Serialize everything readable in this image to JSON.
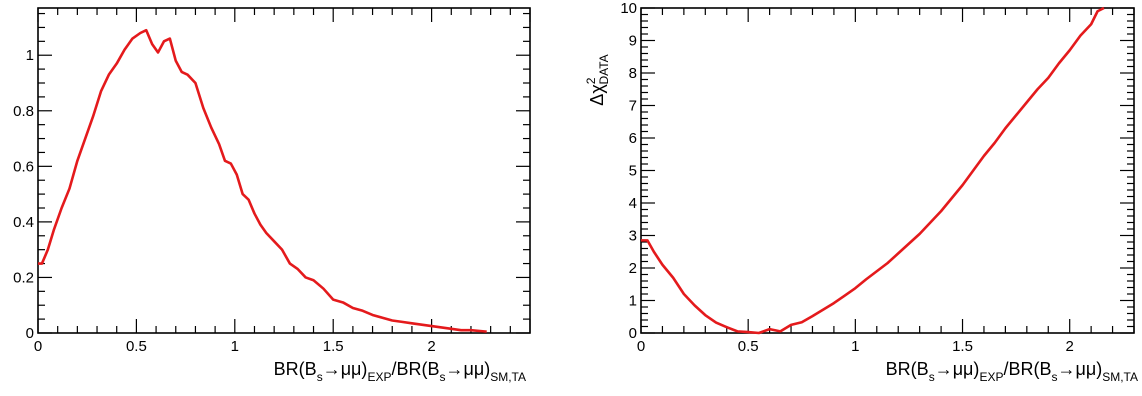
{
  "chart_data": [
    {
      "type": "line",
      "title": "",
      "xlabel": "BR(B_s→μμ)_EXP/BR(B_s→μμ)_SM,TA",
      "xlabel_parts": {
        "a": "BR(B",
        "b": "s",
        "c": "→μμ)",
        "d": "EXP",
        "e": "/BR(B",
        "f": "s",
        "g": "→μμ)",
        "h": "SM,TA"
      },
      "ylabel": "",
      "xlim": [
        0,
        2.5
      ],
      "ylim": [
        0,
        1.17
      ],
      "x_ticks": [
        0,
        0.5,
        1,
        1.5,
        2
      ],
      "x_tick_labels": [
        "0",
        "0.5",
        "1",
        "1.5",
        "2"
      ],
      "y_ticks": [
        0,
        0.2,
        0.4,
        0.6,
        0.8,
        1
      ],
      "y_tick_labels": [
        "0",
        "0.2",
        "0.4",
        "0.6",
        "0.8",
        "1"
      ],
      "grid": false,
      "color": "#e41a1c",
      "series": [
        {
          "x": [
            0,
            0.02,
            0.05,
            0.08,
            0.12,
            0.16,
            0.2,
            0.24,
            0.28,
            0.32,
            0.36,
            0.4,
            0.44,
            0.48,
            0.52,
            0.55,
            0.58,
            0.61,
            0.64,
            0.67,
            0.7,
            0.73,
            0.76,
            0.8,
            0.84,
            0.88,
            0.92,
            0.95,
            0.98,
            1.01,
            1.04,
            1.07,
            1.1,
            1.13,
            1.16,
            1.2,
            1.24,
            1.28,
            1.32,
            1.36,
            1.4,
            1.45,
            1.5,
            1.55,
            1.6,
            1.65,
            1.7,
            1.75,
            1.8,
            1.85,
            1.9,
            1.95,
            2.0,
            2.05,
            2.1,
            2.15,
            2.2,
            2.28
          ],
          "y": [
            0.25,
            0.25,
            0.3,
            0.37,
            0.45,
            0.52,
            0.62,
            0.7,
            0.78,
            0.87,
            0.93,
            0.97,
            1.02,
            1.06,
            1.08,
            1.09,
            1.04,
            1.01,
            1.05,
            1.06,
            0.98,
            0.94,
            0.93,
            0.9,
            0.81,
            0.74,
            0.68,
            0.62,
            0.61,
            0.57,
            0.5,
            0.48,
            0.43,
            0.39,
            0.36,
            0.33,
            0.3,
            0.25,
            0.23,
            0.2,
            0.19,
            0.16,
            0.12,
            0.11,
            0.09,
            0.08,
            0.065,
            0.055,
            0.045,
            0.04,
            0.035,
            0.03,
            0.025,
            0.02,
            0.015,
            0.01,
            0.01,
            0.005
          ]
        }
      ]
    },
    {
      "type": "line",
      "title": "",
      "xlabel": "BR(B_s→μμ)_EXP/BR(B_s→μμ)_SM,TA",
      "xlabel_parts": {
        "a": "BR(B",
        "b": "s",
        "c": "→μμ)",
        "d": "EXP",
        "e": "/BR(B",
        "f": "s",
        "g": "→μμ)",
        "h": "SM,TA"
      },
      "ylabel": "Δχ²_DATA",
      "ylabel_parts": {
        "a": "Δχ",
        "b": "2",
        "c": "DATA"
      },
      "xlim": [
        0,
        2.3
      ],
      "ylim": [
        0,
        10
      ],
      "x_ticks": [
        0,
        0.5,
        1,
        1.5,
        2
      ],
      "x_tick_labels": [
        "0",
        "0.5",
        "1",
        "1.5",
        "2"
      ],
      "y_ticks": [
        0,
        1,
        2,
        3,
        4,
        5,
        6,
        7,
        8,
        9,
        10
      ],
      "y_tick_labels": [
        "0",
        "1",
        "2",
        "3",
        "4",
        "5",
        "6",
        "7",
        "8",
        "9",
        "10"
      ],
      "grid": false,
      "color": "#e41a1c",
      "series": [
        {
          "x": [
            0,
            0.03,
            0.06,
            0.1,
            0.15,
            0.2,
            0.25,
            0.3,
            0.35,
            0.4,
            0.45,
            0.5,
            0.55,
            0.6,
            0.65,
            0.7,
            0.75,
            0.8,
            0.85,
            0.9,
            0.95,
            1.0,
            1.05,
            1.1,
            1.15,
            1.2,
            1.25,
            1.3,
            1.35,
            1.4,
            1.45,
            1.5,
            1.55,
            1.6,
            1.65,
            1.7,
            1.75,
            1.8,
            1.85,
            1.9,
            1.95,
            2.0,
            2.05,
            2.1,
            2.13,
            2.16
          ],
          "y": [
            2.85,
            2.85,
            2.5,
            2.1,
            1.7,
            1.2,
            0.85,
            0.55,
            0.32,
            0.18,
            0.05,
            0.03,
            0.0,
            0.12,
            0.05,
            0.25,
            0.33,
            0.52,
            0.72,
            0.92,
            1.15,
            1.38,
            1.65,
            1.9,
            2.15,
            2.45,
            2.75,
            3.05,
            3.4,
            3.75,
            4.15,
            4.55,
            5.0,
            5.45,
            5.85,
            6.3,
            6.7,
            7.1,
            7.5,
            7.85,
            8.3,
            8.7,
            9.15,
            9.5,
            9.9,
            10.0
          ]
        }
      ]
    }
  ]
}
